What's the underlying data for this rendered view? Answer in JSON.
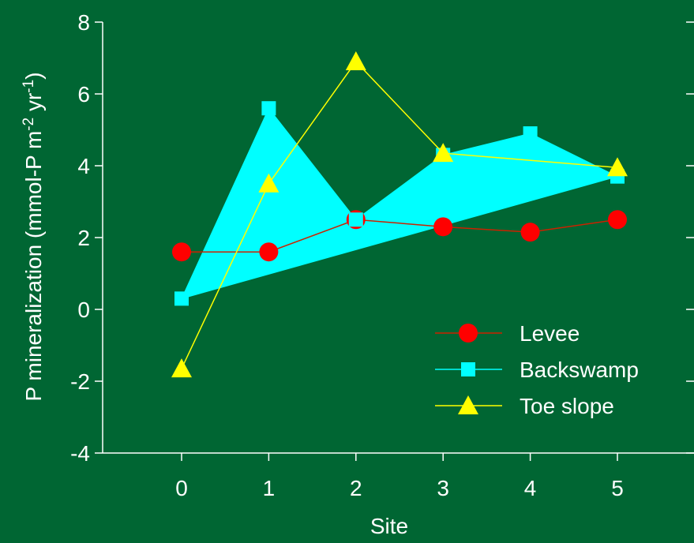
{
  "chart_data": {
    "type": "line",
    "title": "",
    "xlabel": "Site",
    "ylabel": "P mineralization (mmol-P m-2 yr-1)",
    "ylabel_parts": {
      "main": "P mineralization (mmol-P m",
      "sup1": "-2",
      "mid": " yr",
      "sup2": "-1",
      "end": ")"
    },
    "x": [
      0,
      1,
      2,
      3,
      4,
      5
    ],
    "xlim": [
      -1,
      6
    ],
    "ylim": [
      -4,
      8
    ],
    "x_ticks": [
      "0",
      "1",
      "2",
      "3",
      "4",
      "5"
    ],
    "y_ticks": [
      "-4",
      "-2",
      "0",
      "2",
      "4",
      "6",
      "8"
    ],
    "y_tick_values": [
      -4,
      -2,
      0,
      2,
      4,
      6,
      8
    ],
    "grid": false,
    "legend_position": "bottom-right",
    "series": [
      {
        "name": "Levee",
        "values": [
          1.6,
          1.6,
          2.5,
          2.3,
          2.15,
          2.5
        ],
        "color": "#ff0000",
        "line_color": "#cc2200",
        "marker": "circle"
      },
      {
        "name": "Backswamp",
        "values": [
          0.3,
          5.6,
          2.5,
          4.3,
          4.9,
          3.7
        ],
        "color": "#00ffff",
        "line_color": "#00ffff",
        "marker": "square",
        "filled": true
      },
      {
        "name": "Toe slope",
        "values": [
          -1.65,
          3.5,
          6.9,
          4.35,
          null,
          3.95
        ],
        "color": "#ffff00",
        "line_color": "#ffff00",
        "marker": "triangle"
      }
    ]
  },
  "colors": {
    "background": "#006633",
    "axis": "#ffffff",
    "text": "#ffffff"
  }
}
